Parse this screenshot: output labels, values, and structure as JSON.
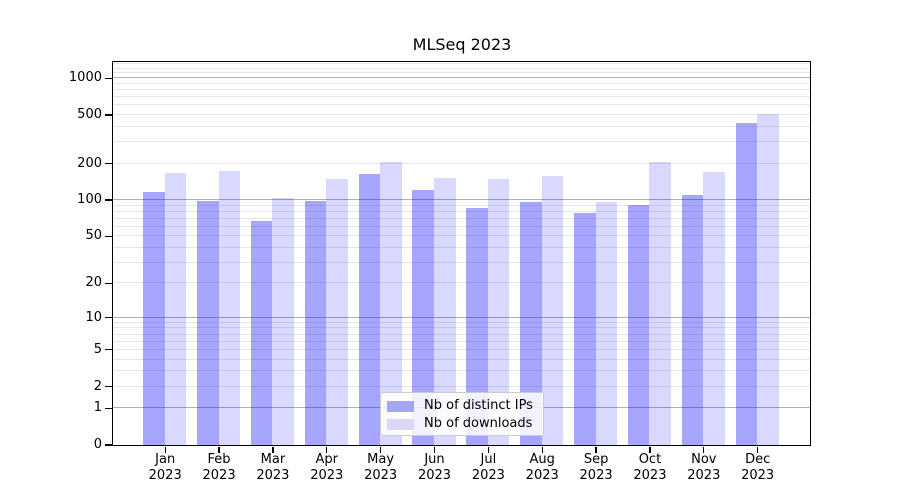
{
  "title": "MLSeq 2023",
  "chart_data": {
    "type": "bar",
    "title": "MLSeq 2023",
    "categories": [
      "Jan 2023",
      "Feb 2023",
      "Mar 2023",
      "Apr 2023",
      "May 2023",
      "Jun 2023",
      "Jul 2023",
      "Aug 2023",
      "Sep 2023",
      "Oct 2023",
      "Nov 2023",
      "Dec 2023"
    ],
    "series": [
      {
        "name": "Nb of distinct IPs",
        "values": [
          115,
          97,
          67,
          97,
          164,
          120,
          85,
          95,
          77,
          91,
          110,
          430
        ]
      },
      {
        "name": "Nb of downloads",
        "values": [
          165,
          173,
          103,
          147,
          203,
          152,
          148,
          156,
          96,
          205,
          168,
          510
        ]
      }
    ],
    "xlabel": "",
    "ylabel": "",
    "yscale": "log1p",
    "yticks": [
      0,
      1,
      2,
      5,
      10,
      20,
      50,
      100,
      200,
      500,
      1000
    ],
    "ylim": [
      0,
      1360
    ],
    "grid": true,
    "legend_position": "lower center"
  },
  "legend": {
    "items": [
      {
        "label": "Nb of distinct IPs",
        "color": "#a6a6f7",
        "fill": "rgba(0,0,255,0.35)"
      },
      {
        "label": "Nb of downloads",
        "color": "#d9d9f7",
        "fill": "rgba(0,0,255,0.15)"
      }
    ]
  },
  "colors": {
    "grid_major": "#b0b0b0",
    "grid_minor": "#e7e7e7",
    "axis": "#000000",
    "background": "#ffffff"
  }
}
